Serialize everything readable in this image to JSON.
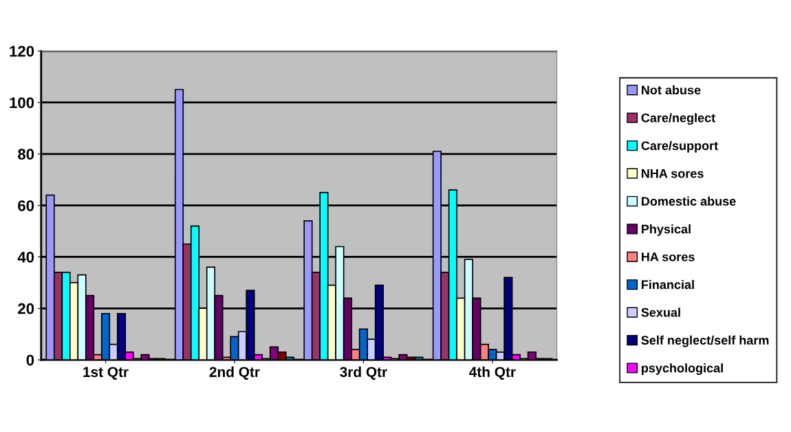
{
  "chart_data": {
    "type": "bar",
    "categories": [
      "1st Qtr",
      "2nd Qtr",
      "3rd Qtr",
      "4th Qtr"
    ],
    "ylim": [
      0,
      120
    ],
    "yticks": [
      0,
      20,
      40,
      60,
      80,
      100,
      120
    ],
    "grid": "y",
    "legend": "right",
    "series": [
      {
        "name": "Not abuse",
        "color": "#9999ff",
        "values": [
          64,
          105,
          54,
          81
        ]
      },
      {
        "name": "Care/neglect",
        "color": "#993366",
        "values": [
          34,
          45,
          34,
          34
        ]
      },
      {
        "name": "Care/support",
        "color": "#00ffff",
        "values": [
          34,
          52,
          65,
          66
        ]
      },
      {
        "name": "NHA sores",
        "color": "#ffffcc",
        "values": [
          30,
          20,
          29,
          24
        ]
      },
      {
        "name": "Domestic abuse",
        "color": "#ccffff",
        "values": [
          33,
          36,
          44,
          39
        ]
      },
      {
        "name": "Physical",
        "color": "#660066",
        "values": [
          25,
          25,
          24,
          24
        ]
      },
      {
        "name": "HA sores",
        "color": "#ff8080",
        "values": [
          2,
          1,
          4,
          6
        ]
      },
      {
        "name": "Financial",
        "color": "#0066cc",
        "values": [
          18,
          9,
          12,
          4
        ]
      },
      {
        "name": "Sexual",
        "color": "#ccccff",
        "values": [
          6,
          11,
          8,
          3
        ]
      },
      {
        "name": "Self neglect/self harm",
        "color": "#000080",
        "values": [
          18,
          27,
          29,
          32
        ]
      },
      {
        "name": "psychological",
        "color": "#ff00ff",
        "values": [
          3,
          2,
          1,
          2
        ]
      },
      {
        "color": "#ffff00",
        "values": [
          0.5,
          0.5,
          0.5,
          0.5
        ]
      },
      {
        "color": "#800080",
        "values": [
          2,
          5,
          2,
          3
        ]
      },
      {
        "color": "#800000",
        "values": [
          0.5,
          3,
          1,
          0.5
        ]
      },
      {
        "color": "#008080",
        "values": [
          0.5,
          1,
          1,
          0.5
        ]
      }
    ]
  }
}
